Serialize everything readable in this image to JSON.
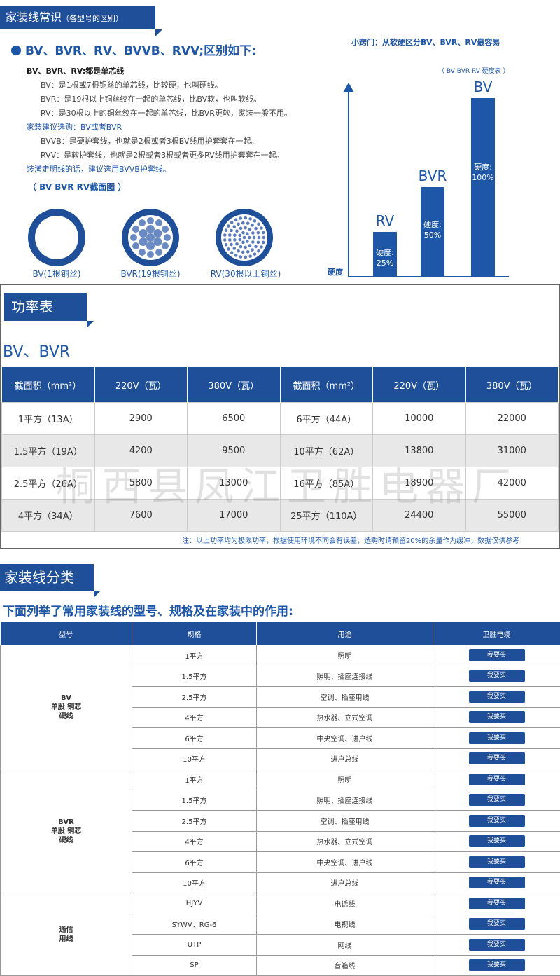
{
  "section1": {
    "tag_main": "家装线常识",
    "tag_sub": "（各型号的区别）",
    "heading": "BV、BVR、RV、BVVB、RVV;区别如下:",
    "lines": {
      "l1": "BV、BVR、RV:都是单芯线",
      "l2": "BV：是1根或7根铜丝的单芯线，比较硬，也叫硬线。",
      "l3": "BVR：是19根以上铜丝绞在一起的单芯线，比BV软，也叫软线。",
      "l4": "RV：是30根以上的铜丝绞在一起的单芯线，比BVR更软，家装一般不用。",
      "l5": "家装建议选购：BV或者BVR",
      "l6": "BVVB：是硬护套线，也就是2根或者3根BV线用护套套在一起。",
      "l7": "RVV：是软护套线，也就是2根或者3根或者更多RV线用护套套在一起。",
      "l8": "装潢走明线的话，建议选用BVVB护套线。"
    },
    "cross_section_title": "（ BV BVR RV截面图 ）",
    "captions": {
      "bv": "BV(1根铜丝)",
      "bvr": "BVR(19根铜丝)",
      "rv": "RV(30根以上铜丝)"
    },
    "tip": "小窍门：从软硬区分BV、BVR、RV最容易",
    "hardness_title": "（ BV BVR RV 硬度表 ）",
    "hardness_axis": "硬度",
    "hardness_label": "硬度:",
    "hardness": [
      {
        "name": "RV",
        "value": 25,
        "text": "25%"
      },
      {
        "name": "BVR",
        "value": 50,
        "text": "50%"
      },
      {
        "name": "BV",
        "value": 100,
        "text": "100%"
      }
    ]
  },
  "section2": {
    "tag": "功率表",
    "subtitle": "BV、BVR",
    "headers": {
      "h1": "截面积（mm²）",
      "h2": "220V（瓦）",
      "h3": "380V（瓦）",
      "h4": "截面积（mm²）",
      "h5": "220V（瓦）",
      "h6": "380V（瓦）"
    },
    "rows": [
      {
        "a": "1平方（13A）",
        "b": "2900",
        "c": "6500",
        "d": "6平方（44A）",
        "e": "10000",
        "f": "22000"
      },
      {
        "a": "1.5平方（19A）",
        "b": "4200",
        "c": "9500",
        "d": "10平方（62A）",
        "e": "13800",
        "f": "31000"
      },
      {
        "a": "2.5平方（26A）",
        "b": "5800",
        "c": "13000",
        "d": "16平方（85A）",
        "e": "18900",
        "f": "42000"
      },
      {
        "a": "4平方（34A）",
        "b": "7600",
        "c": "17000",
        "d": "25平方（110A）",
        "e": "24400",
        "f": "55000"
      }
    ],
    "note": "注：以上功率均为极限功率，根据使用环境不同会有误差，选购时请预留20%的余量作为缓冲，数据仅供参考",
    "watermark": "桐西县凤江卫胜电器厂"
  },
  "section3": {
    "tag": "家装线分类",
    "subtitle": "下面列举了常用家装线的型号、规格及在家装中的作用:",
    "headers": {
      "type": "型号",
      "spec": "规格",
      "use": "用途",
      "brand": "卫胜电缆"
    },
    "buy_label": "我要买",
    "groups": [
      {
        "type": [
          "BV",
          "单股 铜芯",
          "硬线"
        ],
        "rows": [
          {
            "spec": "1平方",
            "use": "照明"
          },
          {
            "spec": "1.5平方",
            "use": "照明、插座连接线"
          },
          {
            "spec": "2.5平方",
            "use": "空调、插座用线"
          },
          {
            "spec": "4平方",
            "use": "热水器、立式空调"
          },
          {
            "spec": "6平方",
            "use": "中央空调、进户线"
          },
          {
            "spec": "10平方",
            "use": "进户总线"
          }
        ]
      },
      {
        "type": [
          "BVR",
          "单股 铜芯",
          "硬线"
        ],
        "rows": [
          {
            "spec": "1平方",
            "use": "照明"
          },
          {
            "spec": "1.5平方",
            "use": "照明、插座连接线"
          },
          {
            "spec": "2.5平方",
            "use": "空调、插座用线"
          },
          {
            "spec": "4平方",
            "use": "热水器、立式空调"
          },
          {
            "spec": "6平方",
            "use": "中央空调、进户线"
          },
          {
            "spec": "10平方",
            "use": "进户总线"
          }
        ]
      },
      {
        "type": [
          "通信",
          "用线"
        ],
        "rows": [
          {
            "spec": "HJYV",
            "use": "电话线"
          },
          {
            "spec": "SYWV、RG-6",
            "use": "电视线"
          },
          {
            "spec": "UTP",
            "use": "网线"
          },
          {
            "spec": "SP",
            "use": "音箱线"
          }
        ]
      }
    ]
  }
}
